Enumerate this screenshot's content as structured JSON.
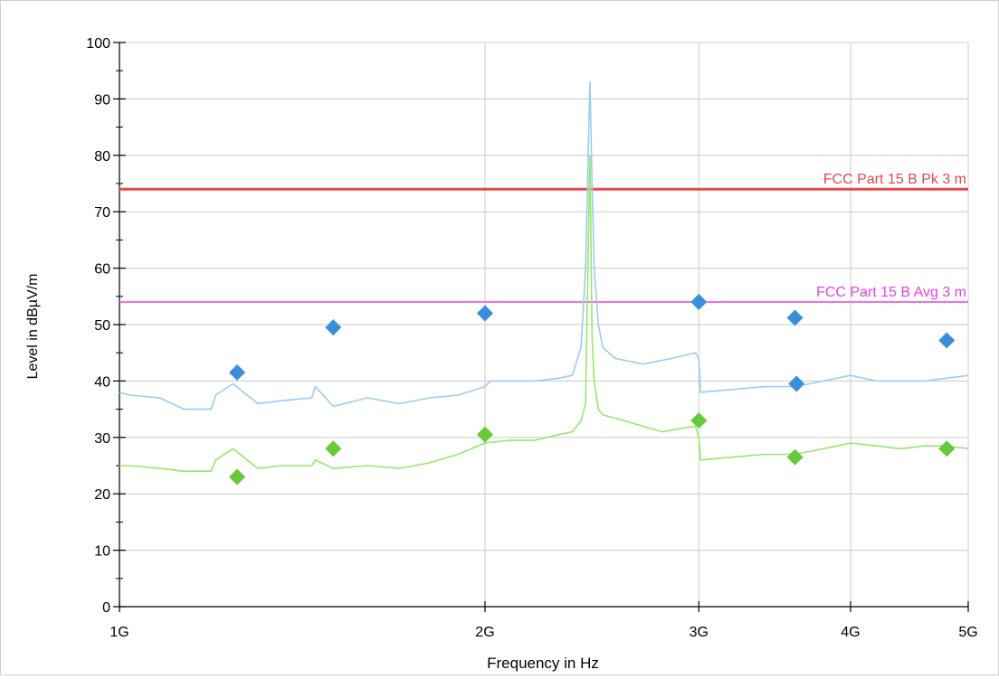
{
  "chart_data": {
    "type": "line",
    "xlabel": "Frequency in Hz",
    "ylabel": "Level in dBµV/m",
    "x_scale": "log",
    "xlim": [
      1000000000,
      5000000000
    ],
    "ylim": [
      0,
      100
    ],
    "grid": true,
    "x_ticks": [
      {
        "value": 1000000000,
        "label": "1G"
      },
      {
        "value": 2000000000,
        "label": "2G"
      },
      {
        "value": 3000000000,
        "label": "3G"
      },
      {
        "value": 4000000000,
        "label": "4G"
      },
      {
        "value": 5000000000,
        "label": "5G"
      }
    ],
    "y_ticks": [
      0,
      10,
      20,
      30,
      40,
      50,
      60,
      70,
      80,
      90,
      100
    ],
    "limit_lines": [
      {
        "label": "FCC Part 15 B Pk 3 m",
        "value": 74,
        "color": "#e8474a"
      },
      {
        "label": "FCC Part 15 B Avg 3 m",
        "value": 54,
        "color": "#e642e6"
      }
    ],
    "series": [
      {
        "color": "#9ccbf2",
        "x": [
          1000000000,
          1020000000,
          1080000000,
          1130000000,
          1190000000,
          1200000000,
          1240000000,
          1300000000,
          1360000000,
          1440000000,
          1450000000,
          1500000000,
          1600000000,
          1700000000,
          1800000000,
          1900000000,
          2000000000,
          2020000000,
          2100000000,
          2200000000,
          2300000000,
          2360000000,
          2400000000,
          2420000000,
          2440000000,
          2450000000,
          2460000000,
          2480000000,
          2500000000,
          2560000000,
          2700000000,
          2850000000,
          2980000000,
          3000000000,
          3010000000,
          3200000000,
          3400000000,
          3600000000,
          3800000000,
          4000000000,
          4200000000,
          4400000000,
          4600000000,
          4800000000,
          5000000000
        ],
        "y": [
          38,
          37.5,
          37,
          35,
          35,
          37.5,
          39.5,
          36,
          36.5,
          37,
          39,
          35.5,
          37,
          36,
          37,
          37.5,
          39,
          40,
          40,
          40,
          40.5,
          41,
          46,
          60,
          93,
          75,
          60,
          50,
          46,
          44,
          43,
          44,
          45,
          44,
          38,
          38.5,
          39,
          39,
          40,
          41,
          40,
          40,
          40,
          40.5,
          41
        ]
      },
      {
        "color": "#99e66e",
        "x": [
          1000000000,
          1020000000,
          1080000000,
          1130000000,
          1190000000,
          1200000000,
          1240000000,
          1300000000,
          1360000000,
          1440000000,
          1450000000,
          1500000000,
          1600000000,
          1700000000,
          1800000000,
          1900000000,
          2000000000,
          2100000000,
          2200000000,
          2300000000,
          2360000000,
          2400000000,
          2420000000,
          2440000000,
          2450000000,
          2460000000,
          2480000000,
          2500000000,
          2600000000,
          2800000000,
          2980000000,
          3000000000,
          3010000000,
          3200000000,
          3400000000,
          3600000000,
          3800000000,
          4000000000,
          4200000000,
          4400000000,
          4600000000,
          4800000000,
          5000000000
        ],
        "y": [
          25,
          25,
          24.5,
          24,
          24,
          26,
          28,
          24.5,
          25,
          25,
          26,
          24.5,
          25,
          24.5,
          25.5,
          27,
          29,
          29.5,
          29.5,
          30.5,
          31,
          33,
          36,
          80,
          48,
          40,
          35,
          34,
          33,
          31,
          32,
          30,
          26,
          26.5,
          27,
          27,
          28,
          29,
          28.5,
          28,
          28.5,
          28.5,
          28
        ]
      }
    ],
    "peak_markers": {
      "color": "#3a8fda",
      "x": [
        1250000000,
        1500000000,
        2000000000,
        3000000000,
        3600000000,
        3610000000,
        4800000000
      ],
      "y": [
        41.5,
        49.5,
        52,
        54,
        51.2,
        39.5,
        47.2
      ]
    },
    "average_markers": {
      "color": "#66c93b",
      "x": [
        1250000000,
        1500000000,
        2000000000,
        3000000000,
        3600000000,
        4800000000
      ],
      "y": [
        23,
        28,
        30.5,
        33,
        26.5,
        28
      ]
    }
  }
}
